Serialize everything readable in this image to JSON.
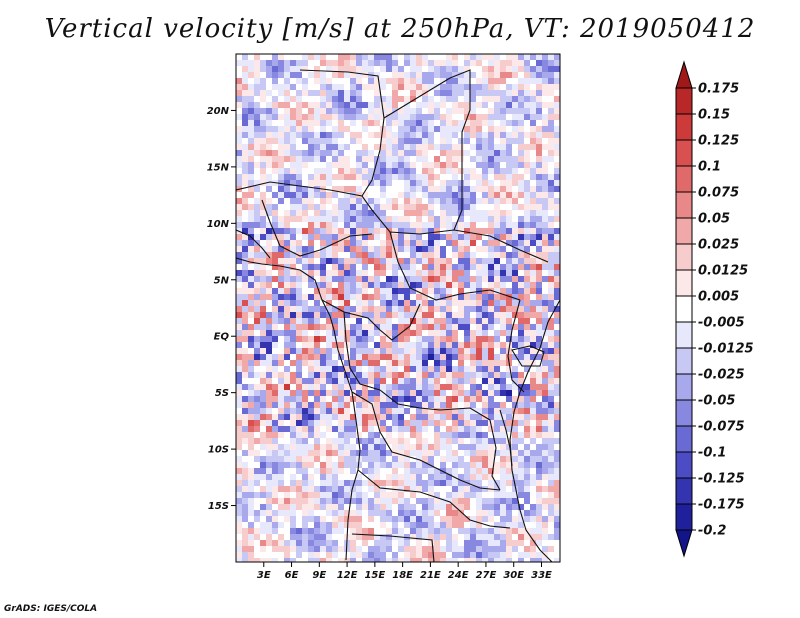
{
  "title": "Vertical velocity [m/s] at 250hPa, VT: 2019050412",
  "credit": "GrADS: IGES/COLA",
  "map": {
    "lon_range": [
      0,
      35
    ],
    "lat_range": [
      -20,
      25
    ],
    "lat_ticks": [
      "20N",
      "15N",
      "10N",
      "5N",
      "EQ",
      "5S",
      "10S",
      "15S"
    ],
    "lon_ticks": [
      "3E",
      "6E",
      "9E",
      "12E",
      "15E",
      "18E",
      "21E",
      "24E",
      "27E",
      "30E",
      "33E"
    ]
  },
  "colorbar": {
    "labels": [
      "0.175",
      "0.15",
      "0.125",
      "0.1",
      "0.075",
      "0.05",
      "0.025",
      "0.0125",
      "0.005",
      "-0.005",
      "-0.0125",
      "-0.025",
      "-0.05",
      "-0.075",
      "-0.1",
      "-0.125",
      "-0.175",
      "-0.2"
    ],
    "colors": [
      "#a01818",
      "#b82828",
      "#cc3a3a",
      "#d85050",
      "#e06a6a",
      "#e88888",
      "#f0a8a8",
      "#f7cccc",
      "#fce8e8",
      "#ffffff",
      "#e8e8fc",
      "#c8c8f4",
      "#a8a8ec",
      "#8888e0",
      "#6a6ad4",
      "#4c4cc4",
      "#3434b0",
      "#20209c",
      "#14148a"
    ]
  }
}
